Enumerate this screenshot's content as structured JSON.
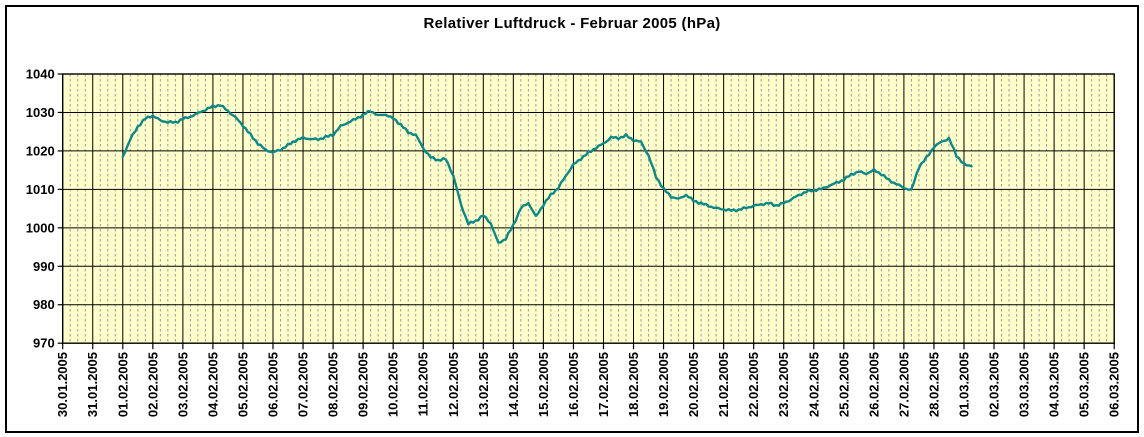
{
  "chart_data": {
    "type": "line",
    "title": "Relativer Luftdruck - Februar 2005 (hPa)",
    "unit": "hPa",
    "legend": "none",
    "grid": "on",
    "y_axis": {
      "min": 970,
      "max": 1040,
      "tick_step": 10,
      "tick_labels": [
        "1040",
        "1030",
        "1020",
        "1010",
        "1000",
        "990",
        "980",
        "970"
      ]
    },
    "x_axis": {
      "tick_labels": [
        "30.01.2005",
        "31.01.2005",
        "01.02.2005",
        "02.02.2005",
        "03.02.2005",
        "04.02.2005",
        "05.02.2005",
        "06.02.2005",
        "07.02.2005",
        "08.02.2005",
        "09.02.2005",
        "10.02.2005",
        "11.02.2005",
        "12.02.2005",
        "13.02.2005",
        "14.02.2005",
        "15.02.2005",
        "16.02.2005",
        "17.02.2005",
        "18.02.2005",
        "19.02.2005",
        "20.02.2005",
        "21.02.2005",
        "22.02.2005",
        "23.02.2005",
        "24.02.2005",
        "25.02.2005",
        "26.02.2005",
        "27.02.2005",
        "28.02.2005",
        "01.03.2005",
        "02.03.2005",
        "03.03.2005",
        "04.03.2005",
        "05.03.2005",
        "06.03.2005"
      ],
      "minor_divisions_per_day": 4
    },
    "series": [
      {
        "name": "Relativer Luftdruck",
        "start_tick_index": 2,
        "sample_interval_hours": 6,
        "values": [
          1018.5,
          1023.0,
          1026.3,
          1028.4,
          1029.2,
          1027.9,
          1027.5,
          1027.4,
          1028.3,
          1028.9,
          1029.8,
          1030.7,
          1031.6,
          1031.9,
          1030.4,
          1028.7,
          1026.6,
          1024.2,
          1021.9,
          1020.3,
          1019.6,
          1020.3,
          1021.5,
          1022.7,
          1023.4,
          1023.1,
          1023.0,
          1023.6,
          1024.2,
          1026.4,
          1027.4,
          1028.3,
          1029.4,
          1030.4,
          1029.2,
          1029.5,
          1028.4,
          1026.9,
          1024.8,
          1024.2,
          1020.7,
          1018.3,
          1017.6,
          1017.9,
          1013.6,
          1006.2,
          1001.0,
          1001.8,
          1003.2,
          1001.2,
          996.0,
          997.2,
          1000.7,
          1005.1,
          1006.5,
          1002.9,
          1006.0,
          1008.6,
          1010.4,
          1013.6,
          1016.4,
          1018.0,
          1019.5,
          1020.8,
          1021.9,
          1023.5,
          1023.3,
          1024.0,
          1022.8,
          1022.3,
          1018.8,
          1013.3,
          1010.1,
          1008.1,
          1007.5,
          1008.6,
          1007.0,
          1006.4,
          1005.7,
          1005.1,
          1004.8,
          1004.5,
          1004.7,
          1005.2,
          1005.7,
          1006.1,
          1006.4,
          1005.8,
          1006.4,
          1007.4,
          1008.5,
          1009.4,
          1009.8,
          1010.1,
          1010.9,
          1011.7,
          1012.5,
          1013.9,
          1014.6,
          1014.1,
          1015.0,
          1014.0,
          1012.4,
          1011.4,
          1010.4,
          1009.8,
          1015.8,
          1018.2,
          1021.0,
          1022.4,
          1023.2,
          1018.8,
          1016.5,
          1016.0
        ]
      }
    ],
    "colors": {
      "line": "#0E8787",
      "plot_background": "#FFFFCC",
      "major_grid": "#000000",
      "minor_grid": "#999999",
      "axis": "#000000",
      "text": "#000000",
      "page_background": "#FFFFFF"
    }
  }
}
